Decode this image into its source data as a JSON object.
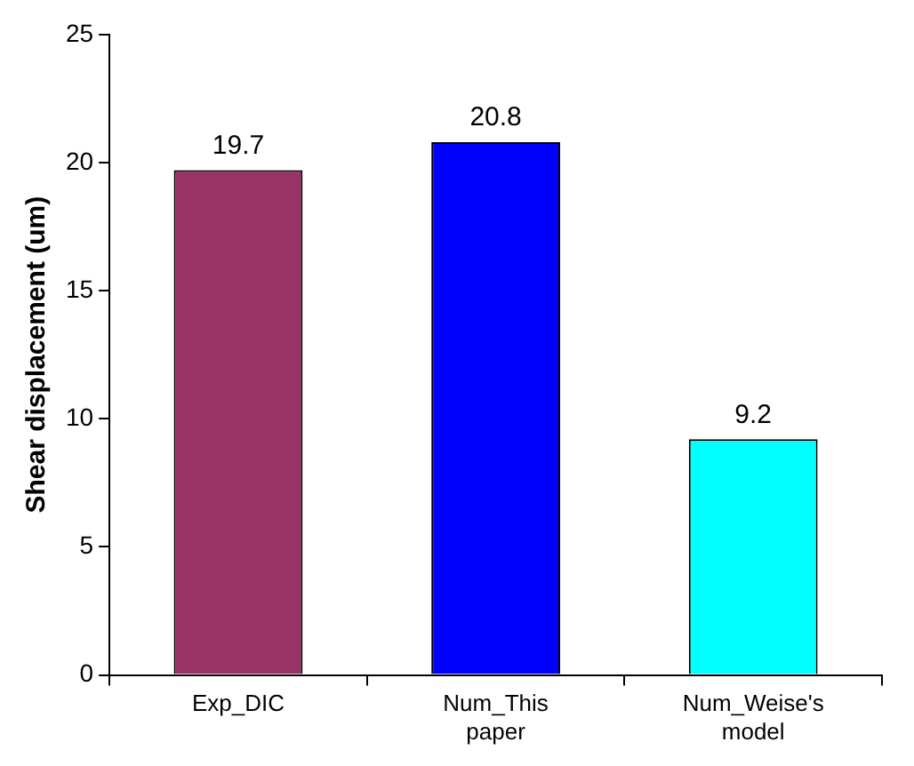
{
  "chart_data": {
    "type": "bar",
    "ylabel": "Shear displacement (um)",
    "categories": [
      "Exp_DIC",
      "Num_This paper",
      "Num_Weise's model"
    ],
    "values": [
      19.7,
      20.8,
      9.2
    ],
    "colors": [
      "#993366",
      "#0000ff",
      "#00ffff"
    ],
    "ylim": [
      0,
      25
    ],
    "yticks": [
      0,
      5,
      10,
      15,
      20,
      25
    ],
    "data_labels": true
  }
}
